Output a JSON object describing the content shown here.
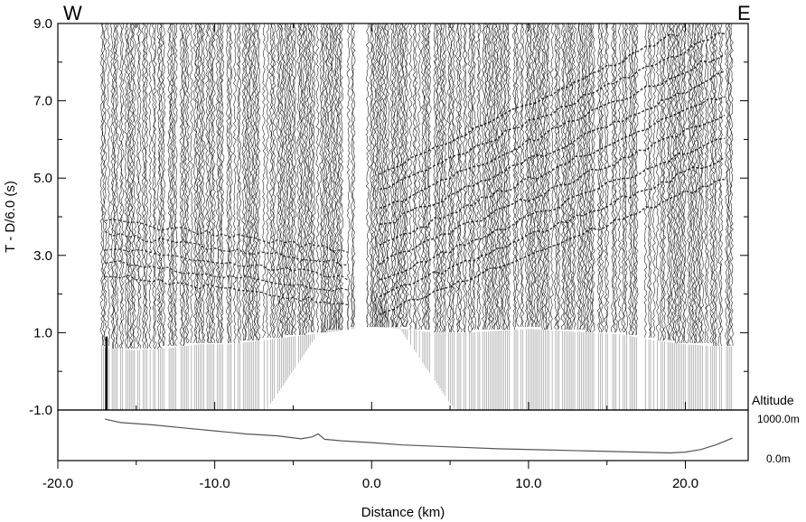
{
  "chart_data": {
    "type": "seismic_record_section",
    "corner_left": "W",
    "corner_right": "E",
    "ylabel": "T - D/6.0 (s)",
    "xlabel": "Distance (km)",
    "xlim": [
      -20.0,
      24.0
    ],
    "ylim": [
      -1.0,
      9.0
    ],
    "x_ticks": [
      "-20.0",
      "-10.0",
      "0.0",
      "10.0",
      "20.0"
    ],
    "x_tick_values": [
      -20,
      -10,
      0,
      10,
      20
    ],
    "y_ticks": [
      "9.0",
      "7.0",
      "5.0",
      "3.0",
      "1.0",
      "-1.0"
    ],
    "y_tick_values": [
      9,
      7,
      5,
      3,
      1,
      -1
    ],
    "traces_x_range_km": [
      -17.2,
      23.0
    ],
    "first_arrivals": {
      "x": [
        -17,
        -15,
        -13,
        -11,
        -9,
        -7,
        -5,
        -3,
        -1,
        0,
        2,
        4,
        6,
        8,
        10,
        12,
        14,
        16,
        18,
        20,
        22,
        23
      ],
      "t": [
        0.6,
        0.55,
        0.6,
        0.7,
        0.7,
        0.8,
        0.9,
        1.0,
        1.1,
        1.15,
        1.1,
        1.0,
        1.0,
        1.05,
        1.1,
        1.05,
        1.0,
        0.95,
        0.8,
        0.7,
        0.65,
        0.65
      ]
    },
    "altitude_profile": {
      "title": "Altitude",
      "labels": [
        "1000.0m",
        "0.0m"
      ],
      "range_m": [
        0,
        1000
      ],
      "x": [
        -17,
        -16,
        -14,
        -12,
        -10,
        -8,
        -6,
        -4.5,
        -3.8,
        -3.4,
        -3,
        -2,
        0,
        2,
        5,
        8,
        11,
        14,
        17,
        19,
        20,
        21,
        22,
        23
      ],
      "elev_m": [
        950,
        860,
        800,
        720,
        640,
        560,
        510,
        430,
        480,
        560,
        420,
        380,
        330,
        270,
        220,
        170,
        140,
        110,
        80,
        60,
        80,
        150,
        280,
        450
      ]
    }
  }
}
